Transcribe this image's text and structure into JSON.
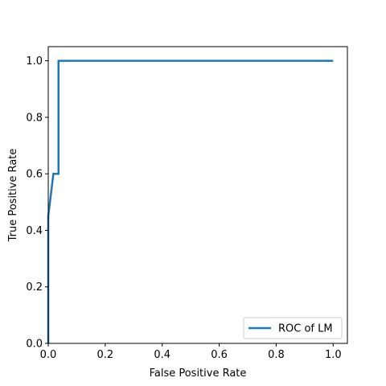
{
  "chart_data": {
    "type": "line",
    "title": "",
    "xlabel": "False Positive Rate",
    "ylabel": "True Positive Rate",
    "xlim": [
      0.0,
      1.05
    ],
    "ylim": [
      0.0,
      1.05
    ],
    "xticks": [
      "0.0",
      "0.2",
      "0.4",
      "0.6",
      "0.8",
      "1.0"
    ],
    "yticks": [
      "0.0",
      "0.2",
      "0.4",
      "0.6",
      "0.8",
      "1.0"
    ],
    "grid": false,
    "legend": {
      "position": "lower-right"
    },
    "series": [
      {
        "name": "ROC of LM",
        "color": "#1f77b4",
        "x": [
          0.0,
          0.0,
          0.0,
          0.0,
          0.018,
          0.018,
          0.036,
          0.036,
          1.0
        ],
        "y": [
          0.0,
          0.2,
          0.4,
          0.45,
          0.6,
          0.6,
          0.6,
          1.0,
          1.0
        ]
      }
    ]
  }
}
